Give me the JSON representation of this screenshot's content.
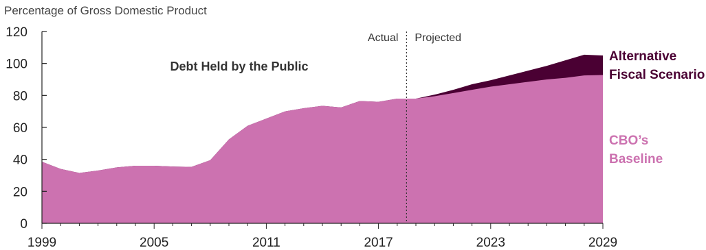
{
  "chart_data": {
    "type": "area",
    "ylabel": "Percentage of Gross Domestic Product",
    "title": "Debt Held by the Public",
    "x": [
      1999,
      2000,
      2001,
      2002,
      2003,
      2004,
      2005,
      2006,
      2007,
      2008,
      2009,
      2010,
      2011,
      2012,
      2013,
      2014,
      2015,
      2016,
      2017,
      2018,
      2019,
      2020,
      2021,
      2022,
      2023,
      2024,
      2025,
      2026,
      2027,
      2028,
      2029
    ],
    "xlim": [
      1999,
      2029
    ],
    "ylim": [
      0,
      120
    ],
    "yticks": [
      0,
      20,
      40,
      60,
      80,
      100,
      120
    ],
    "xticks": [
      1999,
      2005,
      2011,
      2017,
      2023,
      2029
    ],
    "series": [
      {
        "name": "Alternative Fiscal Scenario",
        "name_lines": [
          "Alternative",
          "Fiscal Scenario"
        ],
        "color": "#4a0033",
        "values": [
          38.5,
          34,
          31.5,
          33,
          35,
          36,
          36,
          35.5,
          35.3,
          39.5,
          52.5,
          61,
          65.5,
          70,
          72,
          73.5,
          72.5,
          76.5,
          76,
          78,
          78,
          80.5,
          83.5,
          87,
          89.5,
          92.5,
          95.5,
          98.5,
          102,
          105.5,
          105
        ]
      },
      {
        "name": "CBO’s Baseline",
        "name_lines": [
          "CBO’s",
          "Baseline"
        ],
        "color": "#cc72b0",
        "values": [
          38.5,
          34,
          31.5,
          33,
          35,
          36,
          36,
          35.5,
          35.3,
          39.5,
          52.5,
          61,
          65.5,
          70,
          72,
          73.5,
          72.5,
          76.5,
          76,
          78,
          78,
          79.5,
          81.5,
          83.5,
          85.5,
          87,
          88.5,
          90,
          91,
          92.5,
          92.8
        ]
      }
    ],
    "divider": {
      "x": 2018.5,
      "left_label": "Actual",
      "right_label": "Projected"
    },
    "legend": "right, labels placed at series ends"
  }
}
